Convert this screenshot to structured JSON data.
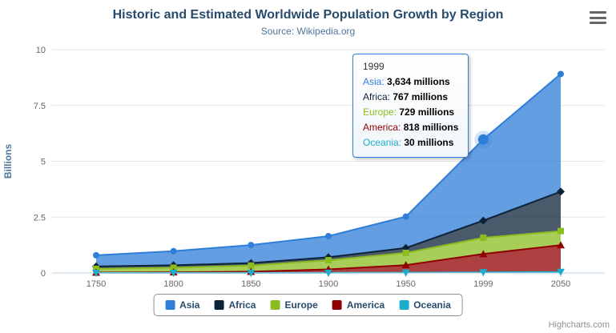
{
  "header": {
    "title": "Historic and Estimated Worldwide Population Growth by Region",
    "subtitle": "Source: Wikipedia.org"
  },
  "export_menu": {
    "icon": "hamburger-menu-icon"
  },
  "chart_data": {
    "type": "area",
    "stacking": "normal",
    "title": "Historic and Estimated Worldwide Population Growth by Region",
    "subtitle": "Source: Wikipedia.org",
    "categories": [
      "1750",
      "1800",
      "1850",
      "1900",
      "1950",
      "1999",
      "2050"
    ],
    "unit": "millions",
    "xlabel": "",
    "ylabel": "Billions",
    "ylim": [
      0,
      10
    ],
    "yticks": [
      0,
      2.5,
      5,
      7.5,
      10
    ],
    "grid": true,
    "legend_position": "bottom",
    "hover": {
      "series": "Asia",
      "category": "1999"
    },
    "series": [
      {
        "name": "Asia",
        "color": "#2f7ed8",
        "marker": "circle",
        "values": [
          502,
          635,
          809,
          947,
          1402,
          3634,
          5268
        ]
      },
      {
        "name": "Africa",
        "color": "#0d233a",
        "marker": "diamond",
        "values": [
          106,
          107,
          111,
          133,
          221,
          767,
          1766
        ]
      },
      {
        "name": "Europe",
        "color": "#8bbc21",
        "marker": "square",
        "values": [
          163,
          203,
          276,
          408,
          547,
          729,
          628
        ]
      },
      {
        "name": "America",
        "color": "#910000",
        "marker": "triangle",
        "values": [
          18,
          31,
          54,
          156,
          339,
          818,
          1201
        ]
      },
      {
        "name": "Oceania",
        "color": "#1aadce",
        "marker": "triangle-down",
        "values": [
          2,
          2,
          2,
          6,
          13,
          30,
          46
        ]
      }
    ]
  },
  "tooltip": {
    "category": "1999",
    "unit": "millions",
    "rows": [
      {
        "name": "Asia",
        "value": "3,634"
      },
      {
        "name": "Africa",
        "value": "767"
      },
      {
        "name": "Europe",
        "value": "729"
      },
      {
        "name": "America",
        "value": "818"
      },
      {
        "name": "Oceania",
        "value": "30"
      }
    ]
  },
  "credits": "Highcharts.com"
}
